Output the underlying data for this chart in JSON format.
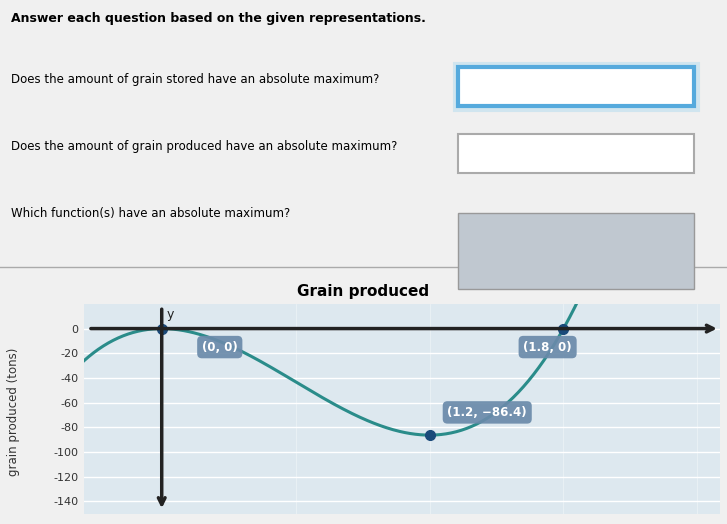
{
  "title": "Grain produced",
  "ylabel": "grain produced (tons)",
  "points": [
    [
      0,
      0
    ],
    [
      1.2,
      -86.4
    ],
    [
      1.8,
      0
    ]
  ],
  "point_labels": [
    "(0, 0)",
    "(1.2, −86.4)",
    "(1.8, 0)"
  ],
  "xlim": [
    -0.35,
    2.5
  ],
  "ylim": [
    -150,
    20
  ],
  "yticks": [
    0,
    -20,
    -40,
    -60,
    -80,
    -100,
    -120,
    -140
  ],
  "curve_color": "#2a8c8a",
  "point_color": "#1a4a7a",
  "label_bg_color": "#6a8aaa",
  "label_text_color": "white",
  "graph_bg_color": "#dde8ef",
  "grid_line_color": "#ffffff",
  "top_bg_color": "#f0f0f0",
  "questions": [
    "Answer each question based on the given representations.",
    "Does the amount of grain stored have an absolute maximum?",
    "Does the amount of grain produced have an absolute maximum?",
    "Which function(s) have an absolute maximum?"
  ],
  "answer_label": "Grain produced",
  "q1_box_fill": "#ffffff",
  "q1_box_edge": "#55aadd",
  "q1_box_glow": "#88ccee",
  "q2_box_fill": "#ffffff",
  "q2_box_edge": "#aaaaaa",
  "q3_box_fill": "#c0c8d0",
  "q3_box_edge": "#999999"
}
